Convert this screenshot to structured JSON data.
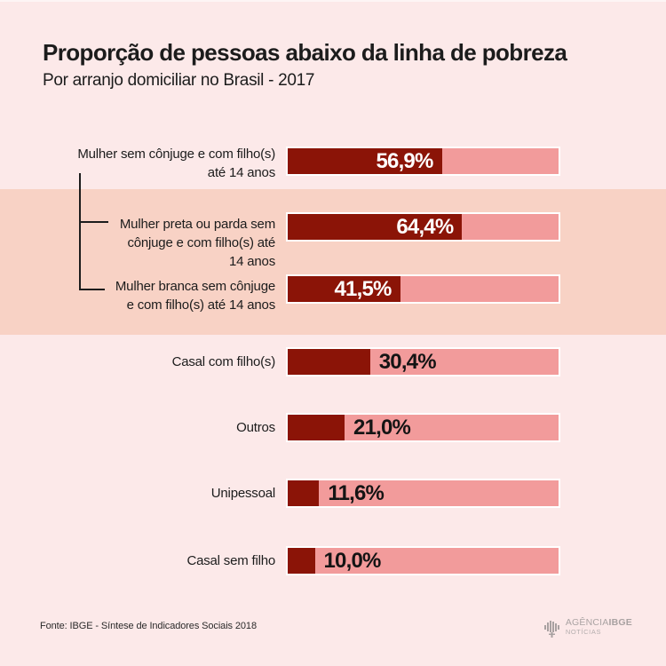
{
  "header": {
    "title": "Proporção de pessoas abaixo da linha de pobreza",
    "subtitle": "Por arranjo domiciliar no Brasil - 2017"
  },
  "chart_data": {
    "type": "bar",
    "orientation": "horizontal",
    "title": "Proporção de pessoas abaixo da linha de pobreza",
    "subtitle": "Por arranjo domiciliar no Brasil - 2017",
    "unit": "%",
    "xlim": [
      0,
      100
    ],
    "grid": false,
    "legend": false,
    "rows": [
      {
        "label": "Mulher sem cônjuge e com filho(s) até 14 anos",
        "label_lines": [
          "Mulher sem cônjuge e com filho(s)",
          "até 14 anos"
        ],
        "value": 56.9,
        "value_label": "56,9%",
        "value_position": "inside",
        "highlighted": false
      },
      {
        "label": "Mulher preta ou parda sem cônjuge e com filho(s) até 14 anos",
        "label_lines": [
          "Mulher preta ou parda sem",
          "cônjuge e com filho(s) até",
          "14 anos"
        ],
        "value": 64.4,
        "value_label": "64,4%",
        "value_position": "inside",
        "highlighted": true
      },
      {
        "label": "Mulher branca sem cônjuge e com filho(s) até 14 anos",
        "label_lines": [
          "Mulher branca sem cônjuge",
          "e com filho(s) até 14 anos"
        ],
        "value": 41.5,
        "value_label": "41,5%",
        "value_position": "inside",
        "highlighted": true
      },
      {
        "label": "Casal com filho(s)",
        "label_lines": [
          "Casal com filho(s)"
        ],
        "value": 30.4,
        "value_label": "30,4%",
        "value_position": "outside",
        "highlighted": false
      },
      {
        "label": "Outros",
        "label_lines": [
          "Outros"
        ],
        "value": 21.0,
        "value_label": "21,0%",
        "value_position": "outside",
        "highlighted": false
      },
      {
        "label": "Unipessoal",
        "label_lines": [
          "Unipessoal"
        ],
        "value": 11.6,
        "value_label": "11,6%",
        "value_position": "outside",
        "highlighted": false
      },
      {
        "label": "Casal sem filho",
        "label_lines": [
          "Casal sem filho"
        ],
        "value": 10.0,
        "value_label": "10,0%",
        "value_position": "outside",
        "highlighted": false
      }
    ]
  },
  "colors": {
    "background": "#fce9e9",
    "highlight_band": "#f8d2c5",
    "bar_track": "#f29b9b",
    "bar_fill": "#8b1407",
    "value_inside_text": "#ffffff",
    "value_outside_text": "#141414",
    "bracket": "#1c1c1c",
    "logo_gray": "#a8a1a1"
  },
  "footer": {
    "source": "Fonte: IBGE - Síntese de Indicadores Sociais 2018",
    "logo_agencia": "AGÊNCIA",
    "logo_ibge": "IBGE",
    "logo_noticias": "NOTÍCIAS"
  }
}
